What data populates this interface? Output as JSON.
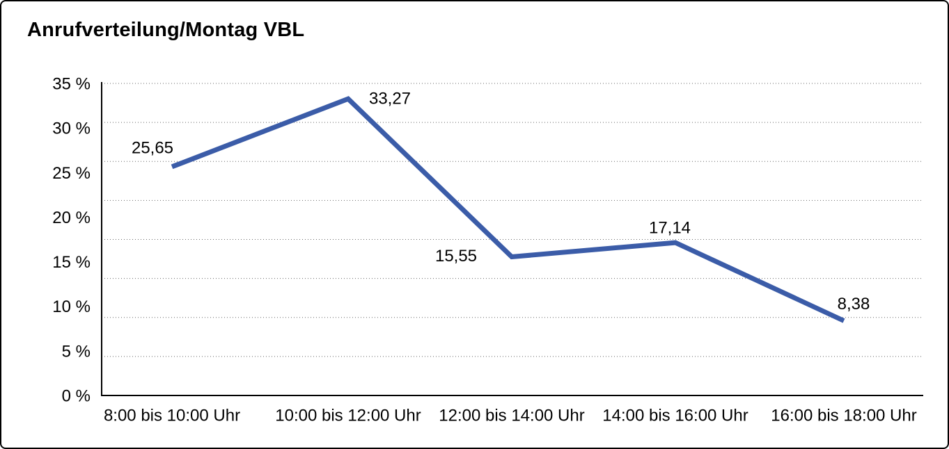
{
  "chart_data": {
    "type": "line",
    "title": "Anrufverteilung/Montag VBL",
    "categories": [
      "8:00 bis 10:00 Uhr",
      "10:00 bis 12:00 Uhr",
      "12:00 bis 14:00 Uhr",
      "14:00 bis 16:00 Uhr",
      "16:00 bis 18:00 Uhr"
    ],
    "values": [
      25.65,
      33.27,
      15.55,
      17.14,
      8.38
    ],
    "point_labels": [
      "25,65",
      "33,27",
      "15,55",
      "17,14",
      "8,38"
    ],
    "xlabel": "",
    "ylabel": "",
    "ylim": [
      0,
      35
    ],
    "ytick_values": [
      35,
      30,
      25,
      20,
      15,
      10,
      5,
      0
    ],
    "ytick_labels": [
      "35 %",
      "30 %",
      "25 %",
      "20 %",
      "15 %",
      "10 %",
      "5 %",
      "0 %"
    ],
    "grid": "horizontal-dotted",
    "gridline_intervals": 8,
    "legend": "none",
    "line_color": "#3B5CA8",
    "text_color": "#000000",
    "background_color": "#FFFFFF"
  }
}
